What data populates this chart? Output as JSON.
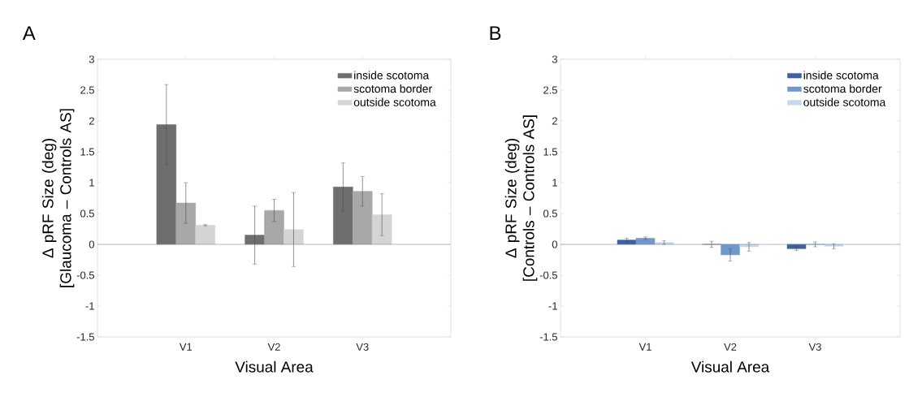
{
  "chart_data": [
    {
      "type": "bar",
      "title": "A",
      "xlabel": "Visual Area",
      "ylabel": "Δ pRF Size (deg) [Glaucoma – Controls AS]",
      "categories": [
        "V1",
        "V2",
        "V3"
      ],
      "series": [
        {
          "name": "inside scotoma",
          "color": "#6e6e6e",
          "values": [
            1.94,
            0.15,
            0.93
          ],
          "errors": [
            0.65,
            0.47,
            0.39
          ]
        },
        {
          "name": "scotoma border",
          "color": "#a8a8a8",
          "values": [
            0.67,
            0.55,
            0.86
          ],
          "errors": [
            0.33,
            0.18,
            0.24
          ]
        },
        {
          "name": "outside scotoma",
          "color": "#d4d4d4",
          "values": [
            0.31,
            0.24,
            0.48
          ],
          "errors": [
            0.01,
            0.6,
            0.34
          ]
        }
      ],
      "ylim": [
        -1.5,
        3
      ],
      "yticks": [
        -1.5,
        -1,
        -0.5,
        0,
        0.5,
        1,
        1.5,
        2,
        2.5,
        3
      ],
      "legend": "top right",
      "ref_lines": [
        {
          "axis": "y",
          "value": 0,
          "color": "#8c8c8c"
        }
      ]
    },
    {
      "type": "bar",
      "title": "B",
      "xlabel": "Visual Area",
      "ylabel": "Δ pRF Size (deg) [Controls – Controls AS]",
      "categories": [
        "V1",
        "V2",
        "V3"
      ],
      "series": [
        {
          "name": "inside scotoma",
          "color": "#3d62a0",
          "values": [
            0.07,
            0.0,
            -0.07
          ],
          "errors": [
            0.03,
            0.05,
            0.03
          ]
        },
        {
          "name": "scotoma border",
          "color": "#7098cc",
          "values": [
            0.1,
            -0.17,
            0.0
          ],
          "errors": [
            0.02,
            0.1,
            0.04
          ]
        },
        {
          "name": "outside scotoma",
          "color": "#c5d7ee",
          "values": [
            0.03,
            -0.04,
            -0.03
          ],
          "errors": [
            0.03,
            0.07,
            0.04
          ]
        }
      ],
      "ylim": [
        -1.5,
        3
      ],
      "yticks": [
        -1.5,
        -1,
        -0.5,
        0,
        0.5,
        1,
        1.5,
        2,
        2.5,
        3
      ],
      "legend": "top right",
      "ref_lines": [
        {
          "axis": "y",
          "value": 0,
          "color": "#8c8c8c"
        }
      ]
    }
  ]
}
